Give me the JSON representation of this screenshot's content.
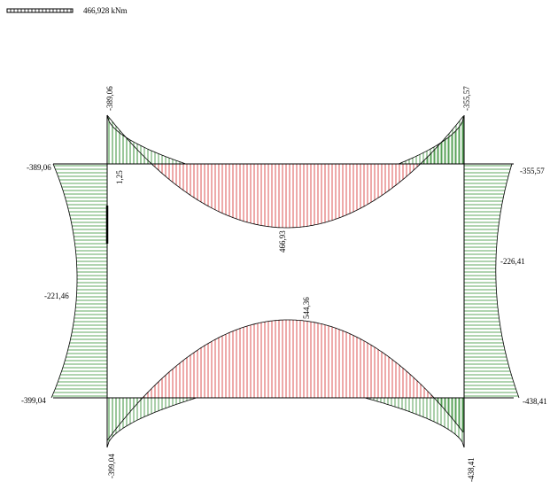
{
  "scale": {
    "value_label": "466,928 kNm"
  },
  "colors": {
    "negative_moment": "#2e8b2e",
    "positive_moment": "#d42a2a",
    "frame": "#000000"
  },
  "labels": {
    "top_left_column_top": "-389,06",
    "top_right_column_top": "-355,57",
    "left_corner_top": "-389,06",
    "right_corner_top": "-355,57",
    "top_beam_small": "1,25",
    "top_beam_mid": "466,93",
    "left_column_mid": "-221,46",
    "right_column_mid": "-226,41",
    "bottom_beam_mid": "544,36",
    "left_corner_bottom": "-399,04",
    "right_corner_bottom": "-438,41",
    "bottom_left_column_bottom": "-399,04",
    "bottom_right_column_bottom": "-438,41"
  }
}
